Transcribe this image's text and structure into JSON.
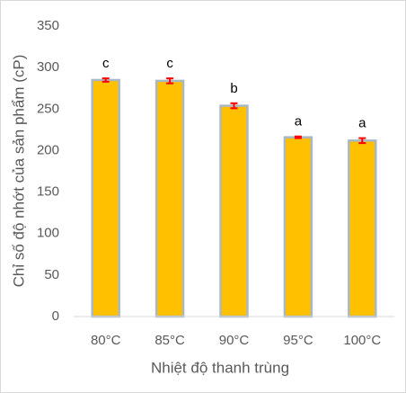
{
  "chart_data": {
    "type": "bar",
    "x_label": "Nhiệt độ thanh trùng",
    "y_label": "Chỉ số độ nhớt của sản phẩm (cP)",
    "categories": [
      "80°C",
      "85°C",
      "90°C",
      "95°C",
      "100°C"
    ],
    "values": [
      285,
      284,
      254,
      216,
      212
    ],
    "errors": [
      2,
      3,
      3,
      1,
      3
    ],
    "letters": [
      "c",
      "c",
      "b",
      "a",
      "a"
    ],
    "color": "#FFC000",
    "edge_color": "#A9B8C4",
    "error_color": "#FF0000",
    "ylim": [
      0,
      350
    ],
    "yticks": [
      0,
      50,
      100,
      150,
      200,
      250,
      300,
      350
    ],
    "grid": false
  }
}
